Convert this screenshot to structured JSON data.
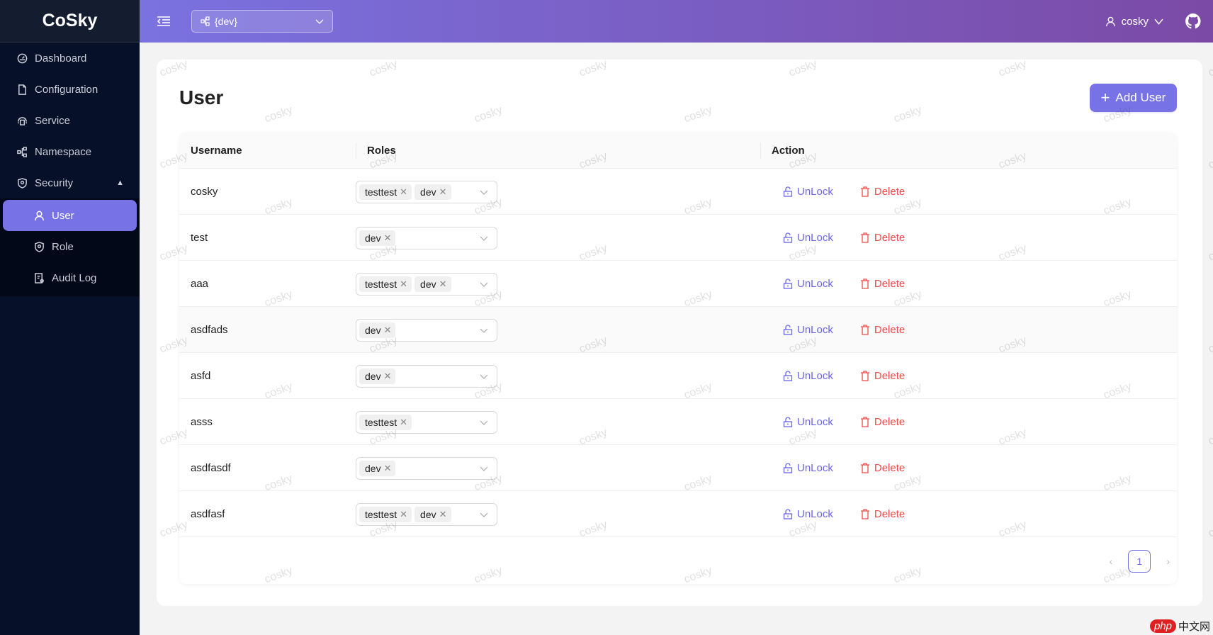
{
  "app": {
    "brand": "CoSky"
  },
  "sidebar": {
    "items": [
      {
        "label": "Dashboard",
        "icon": "dashboard-icon"
      },
      {
        "label": "Configuration",
        "icon": "file-icon"
      },
      {
        "label": "Service",
        "icon": "cloud-icon"
      },
      {
        "label": "Namespace",
        "icon": "cluster-icon"
      },
      {
        "label": "Security",
        "icon": "shield-icon"
      }
    ],
    "security_children": [
      {
        "label": "User",
        "icon": "user-icon",
        "active": true
      },
      {
        "label": "Role",
        "icon": "shield-icon"
      },
      {
        "label": "Audit Log",
        "icon": "audit-icon"
      }
    ]
  },
  "header": {
    "namespace": "{dev}",
    "user": "cosky"
  },
  "page": {
    "title": "User",
    "add_button": "Add User"
  },
  "table": {
    "columns": [
      "Username",
      "Roles",
      "Action"
    ],
    "rows": [
      {
        "username": "cosky",
        "roles": [
          "testtest",
          "dev"
        ]
      },
      {
        "username": "test",
        "roles": [
          "dev"
        ]
      },
      {
        "username": "aaa",
        "roles": [
          "testtest",
          "dev"
        ]
      },
      {
        "username": "asdfads",
        "roles": [
          "dev"
        ]
      },
      {
        "username": "asfd",
        "roles": [
          "dev"
        ]
      },
      {
        "username": "asss",
        "roles": [
          "testtest"
        ]
      },
      {
        "username": "asdfasdf",
        "roles": [
          "dev"
        ]
      },
      {
        "username": "asdfasf",
        "roles": [
          "testtest",
          "dev"
        ]
      }
    ],
    "actions": {
      "unlock": "UnLock",
      "delete": "Delete"
    }
  },
  "pagination": {
    "current": "1"
  },
  "watermark": "cosky",
  "overlay_logo": {
    "badge": "php",
    "text": "中文网"
  },
  "colors": {
    "accent": "#7773e6",
    "danger": "#f04b4b",
    "sidebar": "#071029"
  }
}
